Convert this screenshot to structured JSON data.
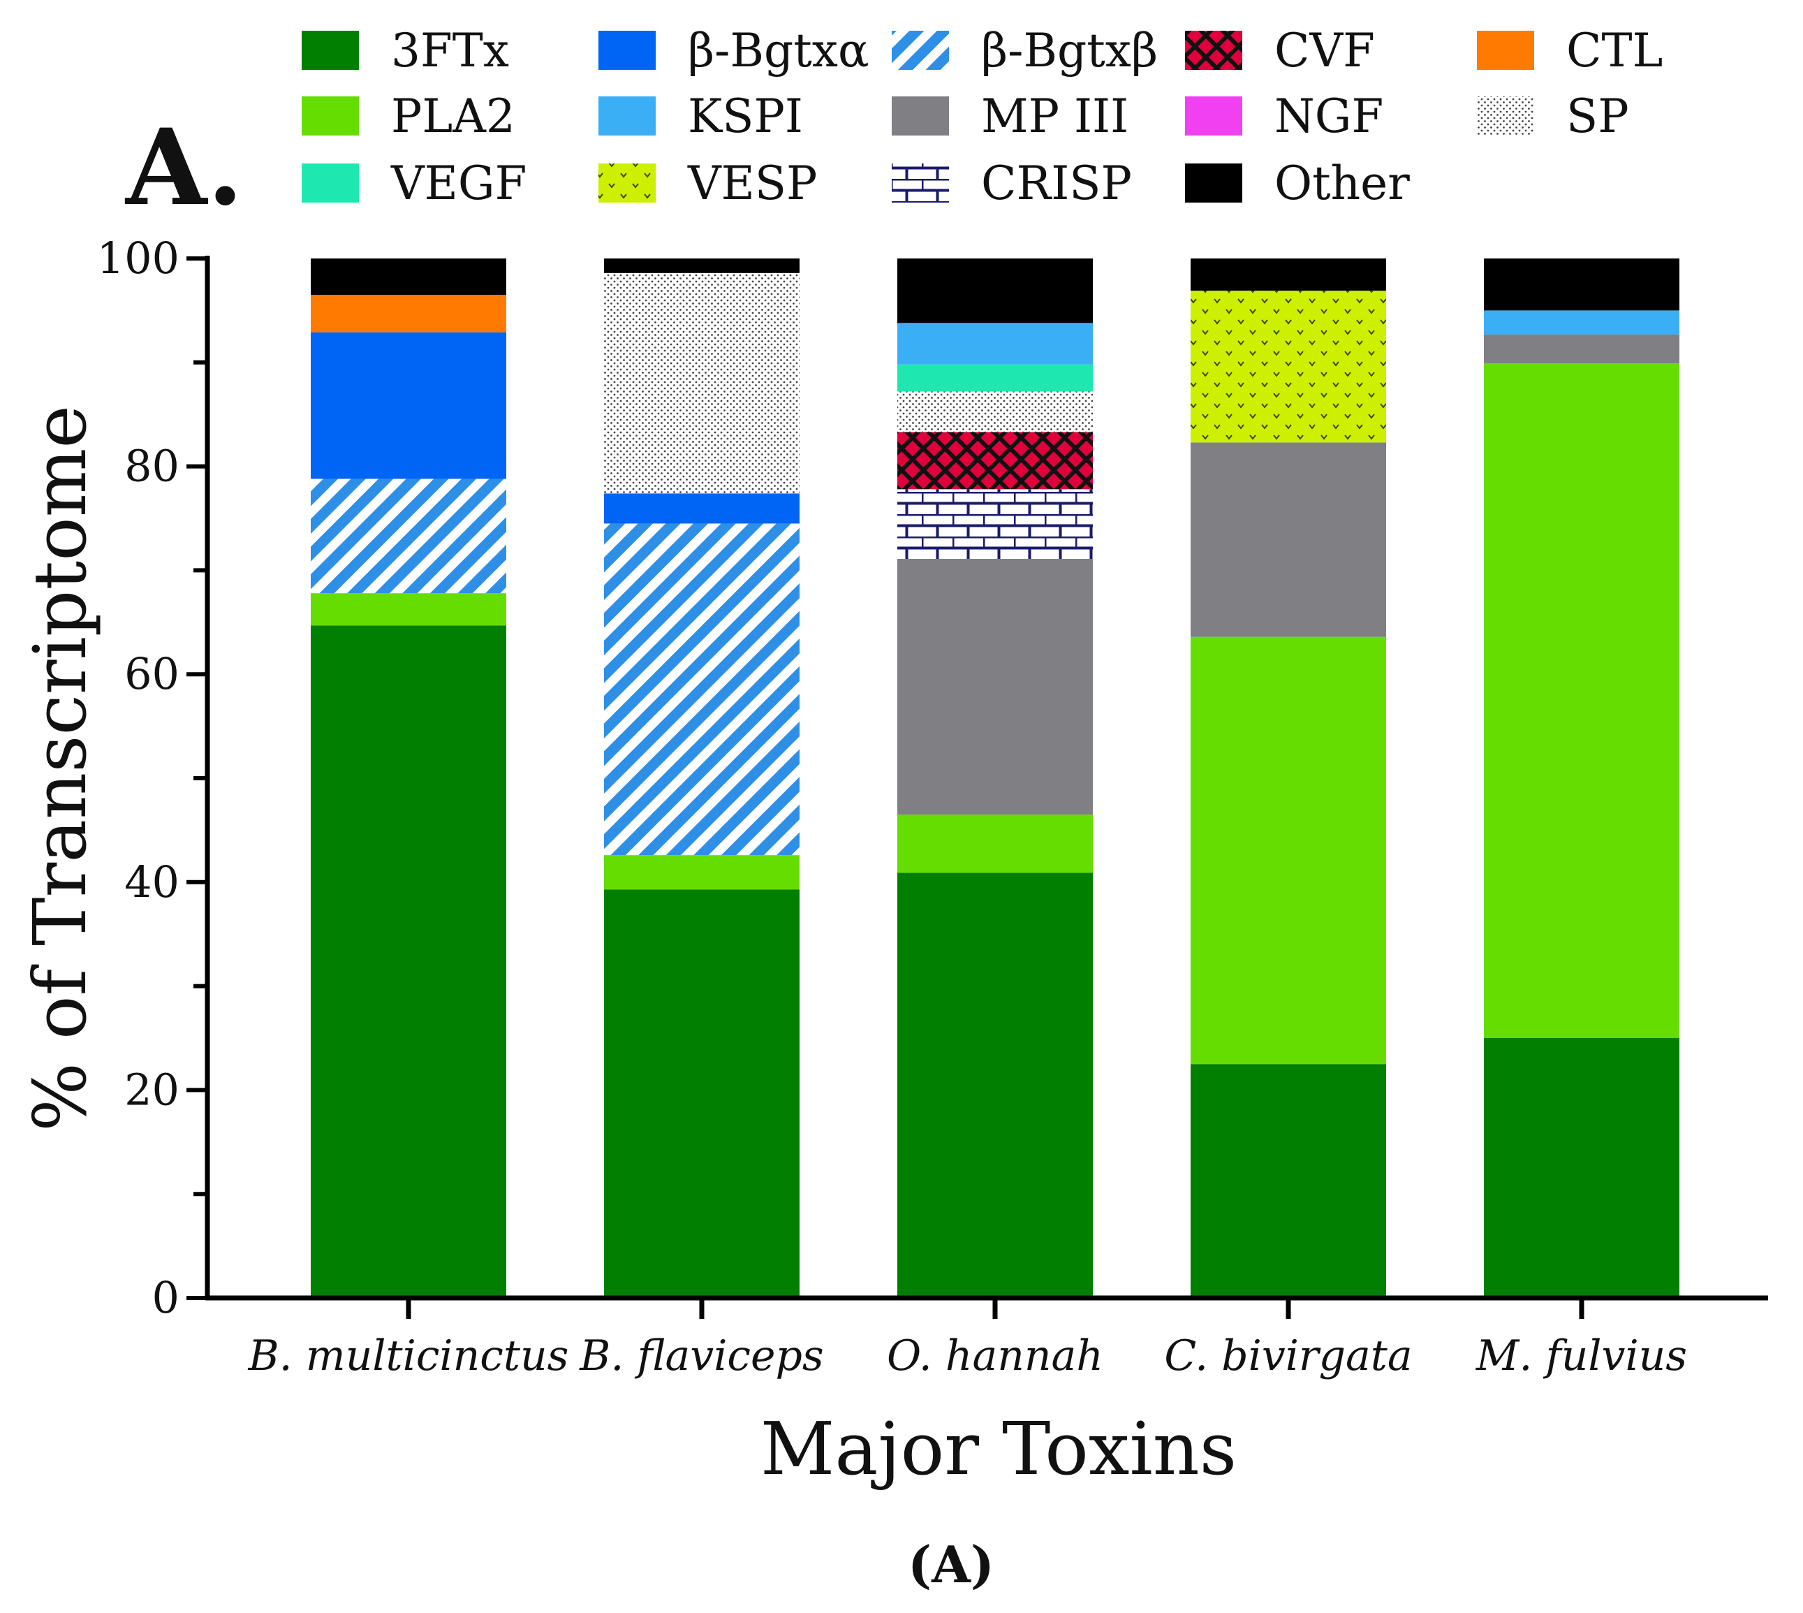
{
  "panel_letter": "A.",
  "caption": "(A)",
  "chart_data": {
    "type": "bar",
    "stacked": true,
    "title": "",
    "xlabel": "Major Toxins",
    "ylabel": "% of Transcriptome",
    "ylim": [
      0,
      100
    ],
    "yticks": [
      "0",
      "20",
      "40",
      "60",
      "80",
      "100"
    ],
    "legend_position": "top",
    "categories": [
      "B. multicinctus",
      "B. flaviceps",
      "O. hannah",
      "C. bivirgata",
      "M. fulvius"
    ],
    "series": [
      {
        "name": "3FTx",
        "color": "#007F00",
        "pattern": "solid",
        "values": [
          64.7,
          39.3,
          40.9,
          22.5,
          25.0
        ]
      },
      {
        "name": "PLA2",
        "color": "#66DD00",
        "pattern": "solid",
        "values": [
          3.1,
          3.3,
          5.6,
          41.1,
          64.9
        ]
      },
      {
        "name": "β-Bgtxβ",
        "color": "#2E8FE6",
        "pattern": "stripes",
        "values": [
          11.0,
          31.9,
          0,
          0,
          0
        ]
      },
      {
        "name": "β-Bgtxα",
        "color": "#0064F5",
        "pattern": "solid",
        "values": [
          14.1,
          2.9,
          0,
          0,
          0
        ]
      },
      {
        "name": "MP III",
        "color": "#7F7F84",
        "pattern": "solid",
        "values": [
          0,
          0,
          24.6,
          18.7,
          2.8
        ]
      },
      {
        "name": "CRISP",
        "color": "#1A1A6E",
        "pattern": "bricks",
        "values": [
          0,
          0,
          6.7,
          0,
          0
        ]
      },
      {
        "name": "CVF",
        "color": "#E0003C",
        "pattern": "crosshatch",
        "values": [
          0,
          0,
          5.5,
          0,
          0
        ]
      },
      {
        "name": "SP",
        "color": "#555555",
        "pattern": "dots",
        "values": [
          0,
          21.2,
          3.9,
          0,
          0
        ]
      },
      {
        "name": "VEGF",
        "color": "#1EE8B0",
        "pattern": "solid",
        "values": [
          0,
          0,
          2.6,
          0,
          0
        ]
      },
      {
        "name": "VESP",
        "color": "#CCF000",
        "pattern": "dots",
        "values": [
          0,
          0,
          0,
          14.6,
          0
        ]
      },
      {
        "name": "KSPI",
        "color": "#3AAFF5",
        "pattern": "solid",
        "values": [
          0,
          0,
          4.0,
          0,
          2.3
        ]
      },
      {
        "name": "NGF",
        "color": "#F040F0",
        "pattern": "solid",
        "values": [
          0,
          0,
          0,
          0,
          0
        ]
      },
      {
        "name": "CTL",
        "color": "#FF7A00",
        "pattern": "solid",
        "values": [
          3.6,
          0,
          0,
          0,
          0
        ]
      },
      {
        "name": "Other",
        "color": "#000000",
        "pattern": "solid",
        "values": [
          3.5,
          1.4,
          6.2,
          3.1,
          5.0
        ]
      }
    ],
    "legend": [
      {
        "name": "3FTx",
        "color": "#007F00",
        "pattern": "solid"
      },
      {
        "name": "β-Bgtxα",
        "color": "#0064F5",
        "pattern": "solid"
      },
      {
        "name": "β-Bgtxβ",
        "color": "#2E8FE6",
        "pattern": "stripes"
      },
      {
        "name": "CVF",
        "color": "#E0003C",
        "pattern": "crosshatch"
      },
      {
        "name": "CTL",
        "color": "#FF7A00",
        "pattern": "solid"
      },
      {
        "name": "PLA2",
        "color": "#66DD00",
        "pattern": "solid"
      },
      {
        "name": "KSPI",
        "color": "#3AAFF5",
        "pattern": "solid"
      },
      {
        "name": "MP III",
        "color": "#7F7F84",
        "pattern": "solid"
      },
      {
        "name": "NGF",
        "color": "#F040F0",
        "pattern": "solid"
      },
      {
        "name": "SP",
        "color": "#555555",
        "pattern": "dots"
      },
      {
        "name": "VEGF",
        "color": "#1EE8B0",
        "pattern": "solid"
      },
      {
        "name": "VESP",
        "color": "#CCF000",
        "pattern": "dots"
      },
      {
        "name": "CRISP",
        "color": "#1A1A6E",
        "pattern": "bricks"
      },
      {
        "name": "Other",
        "color": "#000000",
        "pattern": "solid"
      }
    ]
  }
}
